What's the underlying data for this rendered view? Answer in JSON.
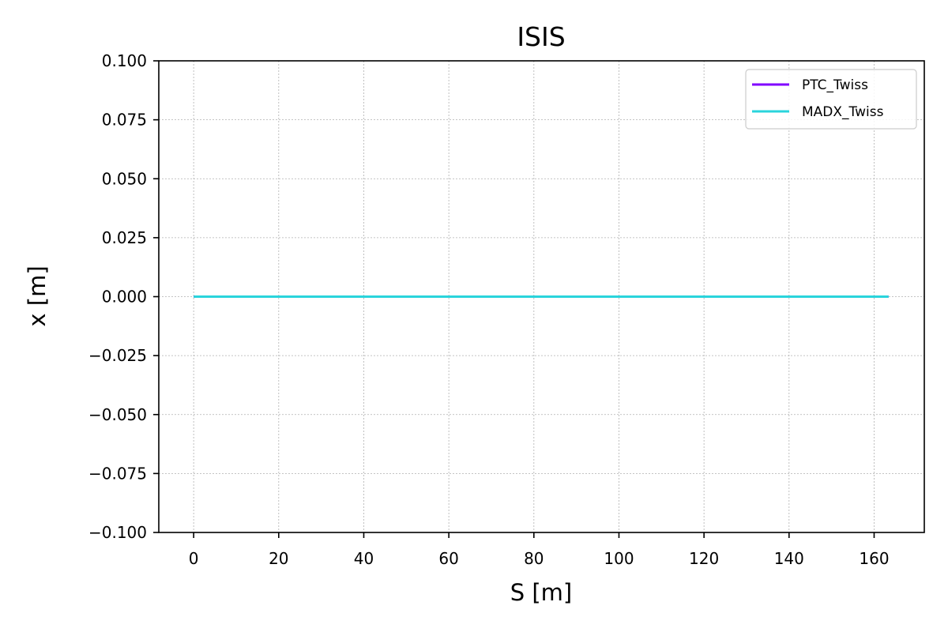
{
  "chart_data": {
    "type": "line",
    "title": "ISIS",
    "xlabel": "S [m]",
    "ylabel": "x [m]",
    "xlim": [
      -8.2,
      171.8
    ],
    "ylim": [
      -0.1,
      0.1
    ],
    "xticks": [
      0,
      20,
      40,
      60,
      80,
      100,
      120,
      140,
      160
    ],
    "yticks": [
      -0.1,
      -0.075,
      -0.05,
      -0.025,
      0.0,
      0.025,
      0.05,
      0.075,
      0.1
    ],
    "ytick_labels": [
      "−0.100",
      "−0.075",
      "−0.050",
      "−0.025",
      "0.000",
      "0.025",
      "0.050",
      "0.075",
      "0.100"
    ],
    "grid": true,
    "legend_position": "top-right",
    "series": [
      {
        "name": "PTC_Twiss",
        "color": "#8000ff",
        "x": [
          0,
          163.4
        ],
        "y": [
          0,
          0
        ]
      },
      {
        "name": "MADX_Twiss",
        "color": "#2ad4dc",
        "x": [
          0,
          163.4
        ],
        "y": [
          0,
          0
        ]
      }
    ]
  }
}
